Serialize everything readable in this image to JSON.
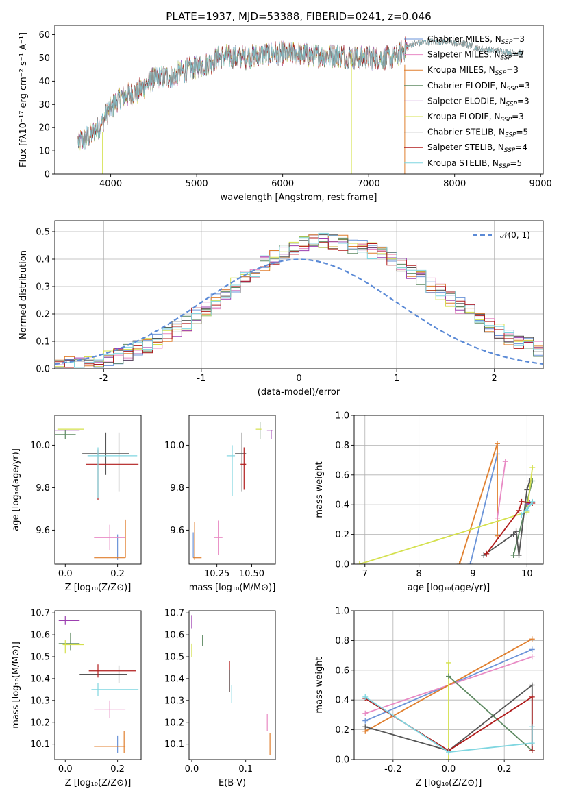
{
  "figure": {
    "title": "PLATE=1937, MJD=53388, FIBERID=0241, z=0.046"
  },
  "chart_data": [
    {
      "id": "spectrum",
      "type": "line",
      "xlabel": "wavelength [Angstrom, rest frame]",
      "ylabel": "Flux [fλ10⁻¹⁷ erg cm⁻² s⁻¹ A⁻¹]",
      "xlim": [
        3350,
        9030
      ],
      "ylim": [
        0,
        64
      ],
      "xticks": [
        4000,
        5000,
        6000,
        7000,
        8000,
        9000
      ],
      "yticks": [
        0,
        10,
        20,
        30,
        40,
        50,
        60
      ],
      "legend_position": "top-right",
      "series": [
        {
          "name": "Chabrier MILES, N",
          "sub": "SSP",
          "eq": "=3",
          "color": "#6a93d8"
        },
        {
          "name": "Salpeter MILES, N",
          "sub": "SSP",
          "eq": "=2",
          "color": "#e88ac4"
        },
        {
          "name": "Kroupa MILES, N",
          "sub": "SSP",
          "eq": "=3",
          "color": "#e07f2e"
        },
        {
          "name": "Chabrier ELODIE, N",
          "sub": "SSP",
          "eq": "=3",
          "color": "#5e8a62"
        },
        {
          "name": "Salpeter ELODIE, N",
          "sub": "SSP",
          "eq": "=3",
          "color": "#9c3fb0"
        },
        {
          "name": "Kroupa ELODIE, N",
          "sub": "SSP",
          "eq": "=3",
          "color": "#d4e04c"
        },
        {
          "name": "Chabrier STELIB, N",
          "sub": "SSP",
          "eq": "=5",
          "color": "#555555"
        },
        {
          "name": "Salpeter STELIB, N",
          "sub": "SSP",
          "eq": "=4",
          "color": "#b01c1c"
        },
        {
          "name": "Kroupa STELIB, N",
          "sub": "SSP",
          "eq": "=5",
          "color": "#7fd6e0"
        }
      ],
      "continuum": [
        [
          3620,
          14
        ],
        [
          3700,
          15
        ],
        [
          3800,
          18
        ],
        [
          3900,
          22
        ],
        [
          3950,
          26
        ],
        [
          4000,
          28
        ],
        [
          4100,
          33
        ],
        [
          4200,
          34
        ],
        [
          4300,
          35
        ],
        [
          4400,
          38
        ],
        [
          4500,
          41
        ],
        [
          4700,
          42
        ],
        [
          4900,
          45
        ],
        [
          5100,
          47
        ],
        [
          5300,
          51
        ],
        [
          5500,
          50
        ],
        [
          5700,
          51
        ],
        [
          5900,
          52
        ],
        [
          6100,
          52
        ],
        [
          6300,
          51
        ],
        [
          6500,
          51
        ],
        [
          6700,
          51
        ],
        [
          6900,
          50
        ],
        [
          7100,
          50
        ],
        [
          7300,
          50
        ],
        [
          7500,
          56
        ],
        [
          7700,
          57
        ],
        [
          7900,
          57
        ],
        [
          8100,
          56
        ],
        [
          8300,
          54
        ],
        [
          8500,
          53
        ],
        [
          8800,
          52
        ]
      ]
    },
    {
      "id": "residuals",
      "type": "step",
      "xlabel": "(data-model)/error",
      "ylabel": "Normed distribution",
      "xlim": [
        -2.5,
        2.5
      ],
      "ylim": [
        0,
        0.54
      ],
      "xticks": [
        -2,
        -1,
        0,
        1,
        2
      ],
      "yticks": [
        0.0,
        0.1,
        0.2,
        0.3,
        0.4,
        0.5
      ],
      "grid": true,
      "legend_position": "top-right",
      "reference": {
        "label": "𝒩(0, 1)",
        "mean": 0,
        "sigma": 1,
        "color": "#5b8ad6"
      },
      "bin_width": 0.1
    },
    {
      "id": "age-vs-Z",
      "type": "errorbar",
      "xlabel": "Z [log₁₀(Z/Z⊙)]",
      "ylabel": "age  [log₁₀(age/yr)]",
      "xlim": [
        -0.04,
        0.29
      ],
      "ylim": [
        9.44,
        10.14
      ],
      "xticks": [
        0.0,
        0.2
      ],
      "yticks": [
        9.6,
        9.8,
        10.0
      ],
      "points": [
        {
          "x": 0.2,
          "xe": 0.0,
          "y": 9.52,
          "ye": 0.06,
          "c": "#6a93d8"
        },
        {
          "x": 0.17,
          "xe": 0.06,
          "y": 9.565,
          "ye": 0.06,
          "c": "#e88ac4"
        },
        {
          "x": 0.17,
          "xe": 0.06,
          "y": 9.47,
          "ye": 0.0,
          "c": "#e07f2e"
        },
        {
          "x": 0.23,
          "xe": 0.0,
          "y": 9.56,
          "ye": 0.09,
          "c": "#e07f2e"
        },
        {
          "x": 0.0,
          "xe": 0.04,
          "y": 10.05,
          "ye": 0.02,
          "c": "#5e8a62"
        },
        {
          "x": 0.005,
          "xe": 0.05,
          "y": 10.07,
          "ye": 0.0,
          "c": "#9c3fb0"
        },
        {
          "x": 0.02,
          "xe": 0.05,
          "y": 10.075,
          "ye": 0.0,
          "c": "#d4e04c"
        },
        {
          "x": 0.155,
          "xe": 0.09,
          "y": 9.96,
          "ye": 0.1,
          "c": "#555555"
        },
        {
          "x": 0.205,
          "xe": 0.0,
          "y": 9.92,
          "ye": 0.14,
          "c": "#555555"
        },
        {
          "x": 0.18,
          "xe": 0.1,
          "y": 9.91,
          "ye": 0.0,
          "c": "#b01c1c"
        },
        {
          "x": 0.125,
          "xe": 0.0,
          "y": 9.86,
          "ye": 0.12,
          "c": "#b01c1c"
        },
        {
          "x": 0.18,
          "xe": 0.095,
          "y": 9.95,
          "ye": 0.0,
          "c": "#7fd6e0"
        },
        {
          "x": 0.125,
          "xe": 0.0,
          "y": 9.87,
          "ye": 0.12,
          "c": "#7fd6e0"
        }
      ]
    },
    {
      "id": "age-vs-mass",
      "type": "errorbar",
      "xlabel": "mass [log₁₀(M/M⊙)]",
      "ylabel": "",
      "xlim": [
        10.05,
        10.67
      ],
      "ylim": [
        9.44,
        10.14
      ],
      "xticks": [
        10.25,
        10.5
      ],
      "yticks": [
        9.6,
        9.8,
        10.0
      ],
      "points": [
        {
          "x": 10.08,
          "xe": 0.0,
          "y": 9.53,
          "ye": 0.06,
          "c": "#6a93d8"
        },
        {
          "x": 10.26,
          "xe": 0.03,
          "y": 9.565,
          "ye": 0.08,
          "c": "#e88ac4"
        },
        {
          "x": 10.11,
          "xe": 0.03,
          "y": 9.47,
          "ye": 0.0,
          "c": "#e07f2e"
        },
        {
          "x": 10.09,
          "xe": 0.0,
          "y": 9.55,
          "ye": 0.09,
          "c": "#e07f2e"
        },
        {
          "x": 10.56,
          "xe": 0.0,
          "y": 10.07,
          "ye": 0.04,
          "c": "#5e8a62"
        },
        {
          "x": 10.63,
          "xe": 0.02,
          "y": 10.07,
          "ye": 0.0,
          "c": "#9c3fb0"
        },
        {
          "x": 10.64,
          "xe": 0.0,
          "y": 10.05,
          "ye": 0.02,
          "c": "#9c3fb0"
        },
        {
          "x": 10.55,
          "xe": 0.02,
          "y": 10.075,
          "ye": 0.0,
          "c": "#d4e04c"
        },
        {
          "x": 10.42,
          "xe": 0.04,
          "y": 9.96,
          "ye": 0.0,
          "c": "#555555"
        },
        {
          "x": 10.43,
          "xe": 0.0,
          "y": 9.92,
          "ye": 0.14,
          "c": "#555555"
        },
        {
          "x": 10.44,
          "xe": 0.02,
          "y": 9.91,
          "ye": 0.0,
          "c": "#b01c1c"
        },
        {
          "x": 10.445,
          "xe": 0.0,
          "y": 9.89,
          "ye": 0.1,
          "c": "#b01c1c"
        },
        {
          "x": 10.35,
          "xe": 0.03,
          "y": 9.95,
          "ye": 0.0,
          "c": "#7fd6e0"
        },
        {
          "x": 10.36,
          "xe": 0.0,
          "y": 9.88,
          "ye": 0.12,
          "c": "#7fd6e0"
        }
      ]
    },
    {
      "id": "massweight-vs-age",
      "type": "line",
      "xlabel": "age  [log₁₀(age/yr)]",
      "ylabel": "mass weight",
      "xlim": [
        6.8,
        10.3
      ],
      "ylim": [
        0,
        1
      ],
      "xticks": [
        7,
        8,
        9,
        10
      ],
      "yticks": [
        0.0,
        0.2,
        0.4,
        0.6,
        0.8,
        1.0
      ],
      "grid": true,
      "series": [
        {
          "c": "#6a93d8",
          "pts": [
            [
              8.95,
              0
            ],
            [
              9.45,
              0.74
            ]
          ]
        },
        {
          "c": "#e07f2e",
          "pts": [
            [
              8.75,
              0
            ],
            [
              9.45,
              0.81
            ],
            [
              9.45,
              0.19
            ]
          ]
        },
        {
          "c": "#e88ac4",
          "pts": [
            [
              9.45,
              0.31
            ],
            [
              9.6,
              0.69
            ]
          ]
        },
        {
          "c": "#5e8a62",
          "pts": [
            [
              9.75,
              0.06
            ],
            [
              10.1,
              0.56
            ]
          ]
        },
        {
          "c": "#d4e04c",
          "pts": [
            [
              6.9,
              0
            ],
            [
              10.0,
              0.35
            ],
            [
              10.1,
              0.65
            ]
          ]
        },
        {
          "c": "#9c3fb0",
          "pts": [
            [
              10.0,
              0.4
            ],
            [
              10.05,
              0.41
            ]
          ]
        },
        {
          "c": "#555555",
          "pts": [
            [
              9.2,
              0.06
            ],
            [
              9.75,
              0.2
            ],
            [
              9.8,
              0.22
            ],
            [
              9.85,
              0.06
            ],
            [
              10.0,
              0.5
            ],
            [
              10.05,
              0.56
            ]
          ]
        },
        {
          "c": "#b01c1c",
          "pts": [
            [
              9.25,
              0.07
            ],
            [
              9.85,
              0.36
            ],
            [
              9.9,
              0.42
            ],
            [
              10.1,
              0.41
            ]
          ]
        },
        {
          "c": "#7fd6e0",
          "pts": [
            [
              9.9,
              0.33
            ],
            [
              10.1,
              0.42
            ],
            [
              10.0,
              0.36
            ]
          ]
        }
      ]
    },
    {
      "id": "mass-vs-Z",
      "type": "errorbar",
      "xlabel": "Z [log₁₀(Z/Z⊙)]",
      "ylabel": "mass [log₁₀(M/M⊙)]",
      "xlim": [
        -0.04,
        0.29
      ],
      "ylim": [
        10.03,
        10.71
      ],
      "xticks": [
        0.0,
        0.2
      ],
      "yticks": [
        10.1,
        10.2,
        10.3,
        10.4,
        10.5,
        10.6,
        10.7
      ],
      "points": [
        {
          "x": 0.2,
          "xe": 0.0,
          "y": 10.1,
          "ye": 0.04,
          "c": "#6a93d8"
        },
        {
          "x": 0.17,
          "xe": 0.06,
          "y": 10.26,
          "ye": 0.0,
          "c": "#e88ac4"
        },
        {
          "x": 0.17,
          "xe": 0.0,
          "y": 10.26,
          "ye": 0.04,
          "c": "#e88ac4"
        },
        {
          "x": 0.17,
          "xe": 0.06,
          "y": 10.09,
          "ye": 0.0,
          "c": "#e07f2e"
        },
        {
          "x": 0.225,
          "xe": 0.0,
          "y": 10.11,
          "ye": 0.05,
          "c": "#e07f2e"
        },
        {
          "x": 0.015,
          "xe": 0.04,
          "y": 10.56,
          "ye": 0.0,
          "c": "#5e8a62"
        },
        {
          "x": 0.02,
          "xe": 0.0,
          "y": 10.57,
          "ye": 0.04,
          "c": "#5e8a62"
        },
        {
          "x": 0.015,
          "xe": 0.04,
          "y": 10.665,
          "ye": 0.0,
          "c": "#9c3fb0"
        },
        {
          "x": 0.0,
          "xe": 0.0,
          "y": 10.665,
          "ye": 0.02,
          "c": "#9c3fb0"
        },
        {
          "x": 0.03,
          "xe": 0.04,
          "y": 10.555,
          "ye": 0.0,
          "c": "#d4e04c"
        },
        {
          "x": 0.0,
          "xe": 0.0,
          "y": 10.545,
          "ye": 0.03,
          "c": "#d4e04c"
        },
        {
          "x": 0.145,
          "xe": 0.09,
          "y": 10.42,
          "ye": 0.0,
          "c": "#555555"
        },
        {
          "x": 0.205,
          "xe": 0.0,
          "y": 10.42,
          "ye": 0.04,
          "c": "#555555"
        },
        {
          "x": 0.18,
          "xe": 0.09,
          "y": 10.435,
          "ye": 0.0,
          "c": "#b01c1c"
        },
        {
          "x": 0.125,
          "xe": 0.0,
          "y": 10.435,
          "ye": 0.03,
          "c": "#b01c1c"
        },
        {
          "x": 0.19,
          "xe": 0.09,
          "y": 10.35,
          "ye": 0.0,
          "c": "#7fd6e0"
        },
        {
          "x": 0.125,
          "xe": 0.0,
          "y": 10.35,
          "ye": 0.03,
          "c": "#7fd6e0"
        }
      ]
    },
    {
      "id": "mass-vs-EBV",
      "type": "errorbar",
      "xlabel": "E(B-V)",
      "ylabel": "",
      "xlim": [
        -0.005,
        0.155
      ],
      "ylim": [
        10.03,
        10.71
      ],
      "xticks": [
        0.0,
        0.1
      ],
      "yticks": [
        10.1,
        10.2,
        10.3,
        10.4,
        10.5,
        10.6,
        10.7
      ],
      "points": [
        {
          "x": 0.0,
          "xe": 0.0,
          "y": 10.66,
          "ye": 0.03,
          "c": "#9c3fb0"
        },
        {
          "x": 0.02,
          "xe": 0.0,
          "y": 10.575,
          "ye": 0.025,
          "c": "#5e8a62"
        },
        {
          "x": 0.0,
          "xe": 0.0,
          "y": 10.53,
          "ye": 0.03,
          "c": "#d4e04c"
        },
        {
          "x": 0.07,
          "xe": 0.0,
          "y": 10.41,
          "ye": 0.07,
          "c": "#b01c1c"
        },
        {
          "x": 0.07,
          "xe": 0.0,
          "y": 10.39,
          "ye": 0.05,
          "c": "#555555"
        },
        {
          "x": 0.074,
          "xe": 0.0,
          "y": 10.33,
          "ye": 0.04,
          "c": "#7fd6e0"
        },
        {
          "x": 0.14,
          "xe": 0.0,
          "y": 10.2,
          "ye": 0.04,
          "c": "#e88ac4"
        },
        {
          "x": 0.145,
          "xe": 0.0,
          "y": 10.1,
          "ye": 0.05,
          "c": "#e07f2e"
        }
      ]
    },
    {
      "id": "massweight-vs-Z",
      "type": "line",
      "xlabel": "Z [log₁₀(Z/Z⊙)]",
      "ylabel": "mass weight",
      "xlim": [
        -0.34,
        0.34
      ],
      "ylim": [
        0,
        1
      ],
      "xticks": [
        -0.2,
        0.0,
        0.2
      ],
      "yticks": [
        0.0,
        0.2,
        0.4,
        0.6,
        0.8,
        1.0
      ],
      "grid": true,
      "series": [
        {
          "c": "#6a93d8",
          "pts": [
            [
              -0.3,
              0.26
            ],
            [
              0.3,
              0.74
            ]
          ]
        },
        {
          "c": "#e88ac4",
          "pts": [
            [
              -0.3,
              0.31
            ],
            [
              0.3,
              0.69
            ]
          ]
        },
        {
          "c": "#e07f2e",
          "pts": [
            [
              -0.3,
              0.19
            ],
            [
              0.3,
              0.81
            ]
          ]
        },
        {
          "c": "#d4e04c",
          "pts": [
            [
              0.0,
              0.65
            ],
            [
              0.0,
              0.0
            ]
          ]
        },
        {
          "c": "#5e8a62",
          "pts": [
            [
              0.0,
              0.56
            ],
            [
              0.3,
              0.06
            ]
          ]
        },
        {
          "c": "#555555",
          "pts": [
            [
              -0.3,
              0.22
            ],
            [
              0.0,
              0.06
            ],
            [
              0.3,
              0.5
            ],
            [
              0.3,
              0.06
            ]
          ]
        },
        {
          "c": "#b01c1c",
          "pts": [
            [
              -0.3,
              0.41
            ],
            [
              0.0,
              0.06
            ],
            [
              0.3,
              0.42
            ],
            [
              0.3,
              0.06
            ]
          ]
        },
        {
          "c": "#7fd6e0",
          "pts": [
            [
              -0.3,
              0.42
            ],
            [
              0.0,
              0.05
            ],
            [
              0.3,
              0.11
            ],
            [
              0.3,
              0.22
            ]
          ]
        }
      ]
    }
  ]
}
